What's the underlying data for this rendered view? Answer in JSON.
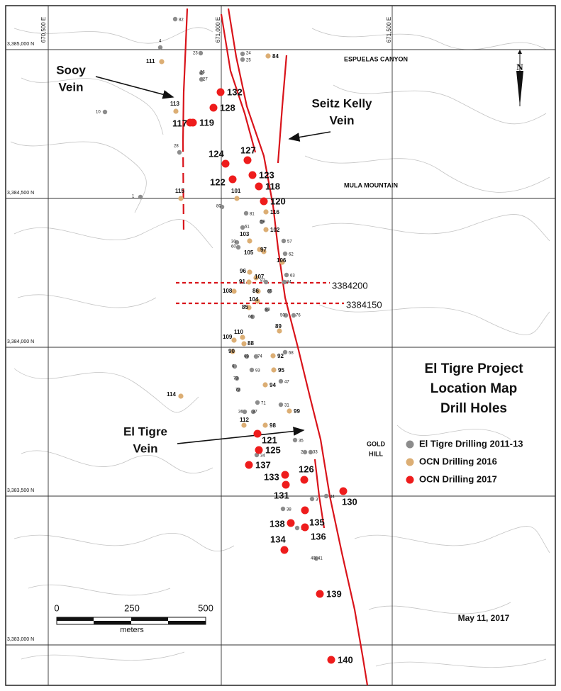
{
  "grid": {
    "eastings": [
      "670,500 E",
      "671,000 E",
      "671,500 E"
    ],
    "northings": [
      "3,385,000 N",
      "3,384,500 N",
      "3,384,000 N",
      "3,383,500 N",
      "3,383,000 N"
    ]
  },
  "place_names": [
    "ESPUELAS CANYON",
    "MULA MOUNTAIN",
    "GOLD",
    "HILL"
  ],
  "veins": [
    {
      "lines": [
        "Sooy",
        "Vein"
      ]
    },
    {
      "lines": [
        "Seitz Kelly",
        "Vein"
      ]
    },
    {
      "lines": [
        "El Tigre",
        "Vein"
      ]
    }
  ],
  "section_lines": [
    "3384200",
    "3384150"
  ],
  "title": [
    "El Tigre Project",
    "Location Map",
    "Drill Holes"
  ],
  "legend": [
    {
      "label": "El Tigre Drilling 2011-13",
      "color": "#8c8c8c",
      "holes": [
        "82",
        "4",
        "23",
        "24",
        "25",
        "26",
        "27",
        "10",
        "28",
        "1",
        "80",
        "81",
        "59",
        "61",
        "57",
        "30",
        "60",
        "62",
        "63",
        "87",
        "84",
        "65",
        "83",
        "50",
        "76",
        "66",
        "68",
        "69",
        "74",
        "6",
        "93",
        "73",
        "47",
        "72",
        "71",
        "31",
        "36",
        "37",
        "35",
        "34",
        "2",
        "33",
        "44",
        "3",
        "38",
        "39",
        "40, 41"
      ]
    },
    {
      "label": "OCN Drilling 2016",
      "color": "#dcae74",
      "holes": [
        "84",
        "111",
        "113",
        "101",
        "115",
        "116",
        "103",
        "102",
        "105",
        "97",
        "106",
        "96",
        "91",
        "107",
        "108",
        "86",
        "104",
        "85",
        "89",
        "109",
        "110",
        "88",
        "90",
        "114",
        "99",
        "112",
        "98",
        "94",
        "95",
        "92"
      ]
    },
    {
      "label": "OCN Drilling 2017",
      "color": "#ee1c1c",
      "holes": [
        "132",
        "128",
        "117",
        "119",
        "124",
        "127",
        "123",
        "122",
        "118",
        "120",
        "121",
        "125",
        "137",
        "126",
        "133",
        "131",
        "130",
        "135",
        "138",
        "136",
        "134",
        "139",
        "140"
      ]
    }
  ],
  "scale_bar": {
    "ticks": [
      "0",
      "250",
      "500"
    ],
    "unit": "meters"
  },
  "date": "May 11, 2017",
  "north": "N"
}
